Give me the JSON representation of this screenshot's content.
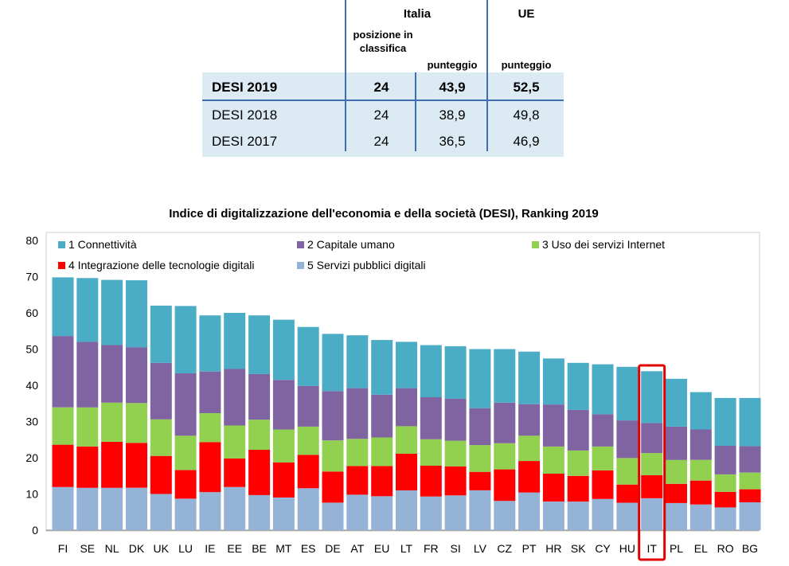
{
  "table": {
    "group_headers": [
      "Italia",
      "UE"
    ],
    "sub_headers": [
      "posizione in classifica",
      "punteggio",
      "punteggio"
    ],
    "rows": [
      {
        "label": "DESI 2019",
        "rank": "24",
        "it_score": "43,9",
        "eu_score": "52,5",
        "bold": true
      },
      {
        "label": "DESI 2018",
        "rank": "24",
        "it_score": "38,9",
        "eu_score": "49,8",
        "bold": false
      },
      {
        "label": "DESI 2017",
        "rank": "24",
        "it_score": "36,5",
        "eu_score": "46,9",
        "bold": false
      }
    ]
  },
  "colors": {
    "connettivita": "#4bacc6",
    "capitale_umano": "#8064a2",
    "uso_internet": "#92d050",
    "integrazione": "#ff0000",
    "servizi_pubblici": "#95b3d7",
    "table_band": "#dcebf3",
    "table_lines": "#3f6fb0",
    "highlight_box": "#e00000"
  },
  "chart_data": {
    "type": "bar",
    "stacked": true,
    "title": "Indice di digitalizzazione dell'economia e della società (DESI), Ranking 2019",
    "ylim": [
      0,
      80
    ],
    "yticks": [
      0,
      10,
      20,
      30,
      40,
      50,
      60,
      70,
      80
    ],
    "grid": false,
    "legend_position": "top-left",
    "highlight_category": "IT",
    "categories": [
      "FI",
      "SE",
      "NL",
      "DK",
      "UK",
      "LU",
      "IE",
      "EE",
      "BE",
      "MT",
      "ES",
      "DE",
      "AT",
      "EU",
      "LT",
      "FR",
      "SI",
      "LV",
      "CZ",
      "PT",
      "HR",
      "SK",
      "CY",
      "HU",
      "IT",
      "PL",
      "EL",
      "RO",
      "BG"
    ],
    "series": [
      {
        "name": "5 Servizi pubblici digitali",
        "color_key": "servizi_pubblici",
        "values": [
          11.9,
          11.7,
          11.7,
          11.7,
          10.0,
          8.7,
          10.5,
          11.9,
          9.7,
          9.0,
          11.6,
          7.6,
          9.8,
          9.4,
          11.0,
          9.3,
          9.6,
          11.0,
          8.1,
          10.4,
          7.9,
          7.9,
          8.6,
          7.6,
          8.8,
          7.5,
          7.1,
          6.3,
          7.7
        ]
      },
      {
        "name": "4 Integrazione delle tecnologie digitali",
        "color_key": "integrazione",
        "values": [
          11.7,
          11.4,
          12.7,
          12.4,
          10.5,
          7.9,
          13.8,
          7.9,
          12.5,
          9.7,
          9.2,
          8.6,
          7.9,
          8.3,
          10.1,
          8.5,
          8.0,
          5.1,
          8.7,
          8.7,
          7.7,
          7.1,
          7.9,
          5.0,
          6.4,
          5.3,
          6.6,
          4.3,
          3.6
        ]
      },
      {
        "name": "3 Uso dei servizi Internet",
        "color_key": "uso_internet",
        "values": [
          10.3,
          10.8,
          10.8,
          11.0,
          10.1,
          9.5,
          8.0,
          9.1,
          8.3,
          9.1,
          7.8,
          8.6,
          7.5,
          7.9,
          7.6,
          7.3,
          7.1,
          7.4,
          7.2,
          7.0,
          7.5,
          7.0,
          6.6,
          7.3,
          6.1,
          6.6,
          5.7,
          4.8,
          4.6
        ]
      },
      {
        "name": "2 Capitale umano",
        "color_key": "capitale_umano",
        "values": [
          19.7,
          18.1,
          15.9,
          15.4,
          15.6,
          17.2,
          11.5,
          15.6,
          12.6,
          13.7,
          11.2,
          13.6,
          14.0,
          11.8,
          10.5,
          11.6,
          11.6,
          10.2,
          11.2,
          8.7,
          11.6,
          11.2,
          8.9,
          10.4,
          8.3,
          9.2,
          8.4,
          7.9,
          7.3
        ]
      },
      {
        "name": "1 Connettività",
        "color_key": "connettivita",
        "values": [
          16.2,
          17.6,
          18.0,
          18.5,
          15.8,
          18.6,
          15.5,
          15.5,
          16.2,
          16.6,
          16.3,
          15.8,
          14.6,
          15.1,
          12.8,
          14.4,
          14.5,
          16.3,
          14.8,
          14.5,
          12.7,
          13.0,
          13.8,
          14.8,
          14.3,
          13.2,
          10.3,
          13.2,
          13.3
        ]
      }
    ]
  }
}
